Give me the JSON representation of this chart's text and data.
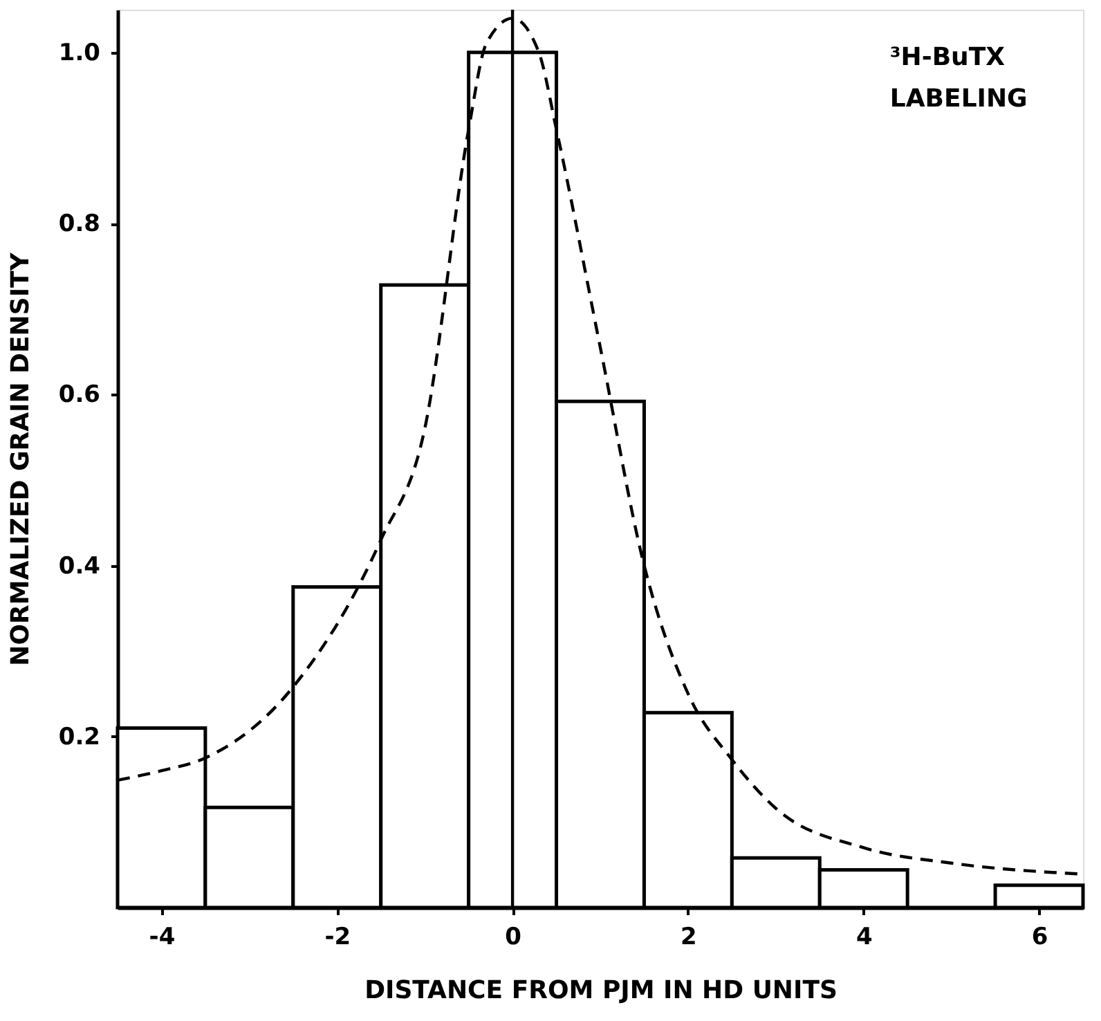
{
  "chart_data": {
    "type": "histogram",
    "xlabel": "DISTANCE FROM PJM IN HD UNITS",
    "ylabel": "NORMALIZED GRAIN DENSITY",
    "annotations": [
      "³H-BuTX LABELING"
    ],
    "bins": [
      -4.5,
      -3.5,
      -2.5,
      -1.5,
      -0.5,
      0.5,
      1.5,
      2.5,
      3.5,
      4.5,
      5.5,
      6.5
    ],
    "series": [
      {
        "color": "#000000",
        "values": [
          0.21,
          0.117,
          0.375,
          0.728,
          1.0,
          0.592,
          0.228,
          0.058,
          0.044,
          0,
          0.026
        ]
      },
      {
        "type": "line",
        "color": "#000000",
        "line_style": "dashed",
        "x": [
          -4.5,
          -4,
          -3.5,
          -2.5,
          -1.5,
          -1,
          -0.5,
          -0.3,
          0,
          0.3,
          0.5,
          1,
          1.5,
          2,
          2.5,
          3,
          4,
          5,
          6.5
        ],
        "values": [
          0.149,
          0.16,
          0.175,
          0.258,
          0.43,
          0.56,
          0.91,
          1.01,
          1.04,
          1.0,
          0.91,
          0.655,
          0.4,
          0.25,
          0.173,
          0.116,
          0.07,
          0.052,
          0.039
        ]
      }
    ],
    "ref_lines": [
      {
        "axis": "x",
        "value": 0,
        "color": "#000000"
      }
    ],
    "xlim": [
      -4.5,
      6.5
    ],
    "ylim": [
      0,
      1.05
    ],
    "xticks": [
      -4,
      -2,
      0,
      2,
      4,
      6
    ],
    "yticks": [
      {
        "value": 0.2,
        "label": "0.2"
      },
      {
        "value": 0.4,
        "label": "0.4"
      },
      {
        "value": 0.6,
        "label": "0.6"
      },
      {
        "value": 0.8,
        "label": "0.8"
      },
      {
        "value": 1,
        "label": "1.0"
      }
    ],
    "grid": false
  }
}
